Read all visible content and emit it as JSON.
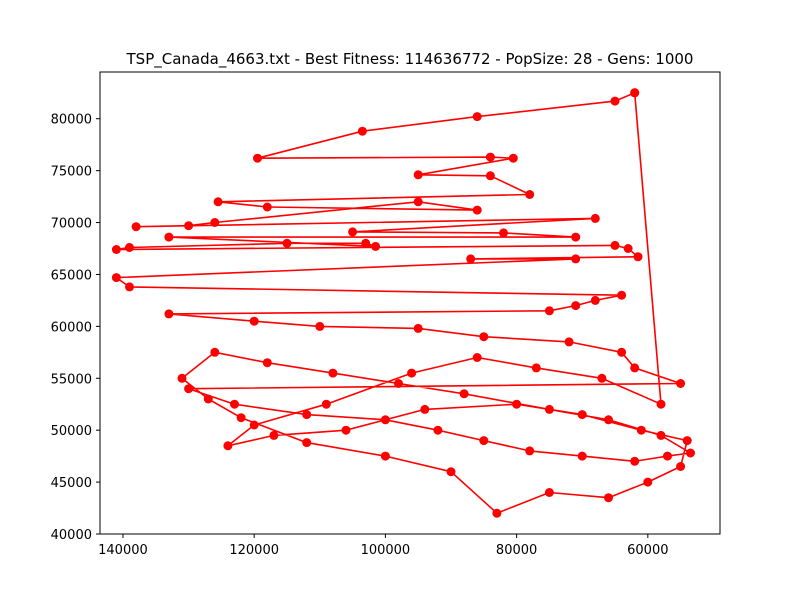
{
  "chart_data": {
    "type": "line",
    "title": "TSP_Canada_4663.txt - Best Fitness: 114636772 - PopSize: 28 - Gens: 1000",
    "xlabel": "",
    "ylabel": "",
    "xlim": [
      143500,
      49000
    ],
    "ylim": [
      40000,
      84500
    ],
    "x_inverted": true,
    "x_ticks": [
      140000,
      120000,
      100000,
      80000,
      60000
    ],
    "x_tick_labels": [
      "140000",
      "120000",
      "100000",
      "80000",
      "60000"
    ],
    "y_ticks": [
      40000,
      45000,
      50000,
      55000,
      60000,
      65000,
      70000,
      75000,
      80000
    ],
    "y_tick_labels": [
      "40000",
      "45000",
      "50000",
      "55000",
      "60000",
      "65000",
      "70000",
      "75000",
      "80000"
    ],
    "grid": false,
    "legend": "none",
    "series_color": "#ff0000",
    "marker": "circle",
    "series": [
      {
        "points": [
          [
            62000,
            82500
          ],
          [
            65000,
            81700
          ],
          [
            86000,
            80200
          ],
          [
            103500,
            78800
          ],
          [
            119500,
            76200
          ],
          [
            84000,
            76300
          ],
          [
            80500,
            76200
          ],
          [
            95000,
            74600
          ],
          [
            84000,
            74500
          ],
          [
            78000,
            72700
          ],
          [
            125500,
            72000
          ],
          [
            118000,
            71500
          ],
          [
            86000,
            71200
          ],
          [
            95000,
            72000
          ],
          [
            126000,
            70000
          ],
          [
            130000,
            69700
          ],
          [
            138000,
            69600
          ],
          [
            68000,
            70400
          ],
          [
            105000,
            69100
          ],
          [
            82000,
            69000
          ],
          [
            71000,
            68600
          ],
          [
            133000,
            68600
          ],
          [
            101500,
            67700
          ],
          [
            103000,
            68000
          ],
          [
            115000,
            68000
          ],
          [
            139000,
            67600
          ],
          [
            141000,
            67400
          ],
          [
            65000,
            67800
          ],
          [
            63000,
            67500
          ],
          [
            61500,
            66700
          ],
          [
            87000,
            66500
          ],
          [
            71000,
            66500
          ],
          [
            141000,
            64700
          ],
          [
            139000,
            63800
          ],
          [
            64000,
            63000
          ],
          [
            68000,
            62500
          ],
          [
            71000,
            62000
          ],
          [
            75000,
            61500
          ],
          [
            133000,
            61200
          ],
          [
            120000,
            60500
          ],
          [
            110000,
            60000
          ],
          [
            95000,
            59800
          ],
          [
            85000,
            59000
          ],
          [
            72000,
            58500
          ],
          [
            64000,
            57500
          ],
          [
            62000,
            56000
          ],
          [
            55000,
            54500
          ],
          [
            130000,
            54000
          ],
          [
            123000,
            52500
          ],
          [
            112000,
            51500
          ],
          [
            100000,
            51000
          ],
          [
            92000,
            50000
          ],
          [
            85000,
            49000
          ],
          [
            78000,
            48000
          ],
          [
            70000,
            47500
          ],
          [
            62000,
            47000
          ],
          [
            57000,
            47500
          ],
          [
            53500,
            47800
          ],
          [
            58000,
            49500
          ],
          [
            66000,
            51000
          ],
          [
            75000,
            52000
          ],
          [
            88000,
            53500
          ],
          [
            98000,
            54500
          ],
          [
            108000,
            55500
          ],
          [
            118000,
            56500
          ],
          [
            126000,
            57500
          ],
          [
            131000,
            55000
          ],
          [
            127000,
            53000
          ],
          [
            122000,
            51200
          ],
          [
            112000,
            48800
          ],
          [
            100000,
            47500
          ],
          [
            90000,
            46000
          ],
          [
            83000,
            42000
          ],
          [
            75000,
            44000
          ],
          [
            66000,
            43500
          ],
          [
            60000,
            45000
          ],
          [
            55000,
            46500
          ],
          [
            54000,
            49000
          ],
          [
            61000,
            50000
          ],
          [
            70000,
            51500
          ],
          [
            80000,
            52500
          ],
          [
            94000,
            52000
          ],
          [
            106000,
            50000
          ],
          [
            117000,
            49500
          ],
          [
            124000,
            48500
          ],
          [
            120000,
            50500
          ],
          [
            109000,
            52500
          ],
          [
            96000,
            55500
          ],
          [
            86000,
            57000
          ],
          [
            77000,
            56000
          ],
          [
            67000,
            55000
          ],
          [
            58000,
            52500
          ],
          [
            62000,
            82500
          ]
        ]
      }
    ]
  }
}
